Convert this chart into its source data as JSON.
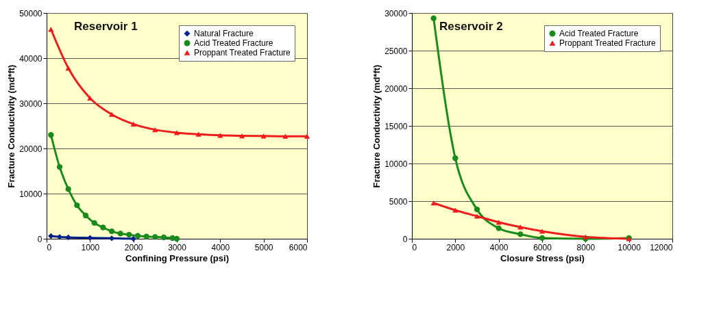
{
  "chart_data": [
    {
      "type": "line",
      "title": "Reservoir 1",
      "xlabel": "Confining Pressure (psi)",
      "ylabel": "Fracture Conductivity (md*ft)",
      "xlim": [
        0,
        6000
      ],
      "xticks": [
        0,
        1000,
        2000,
        3000,
        4000,
        5000,
        6000
      ],
      "ylim": [
        0,
        50000
      ],
      "yticks": [
        0,
        10000,
        20000,
        30000,
        40000,
        50000
      ],
      "grid": "y",
      "legend": "top right",
      "series": [
        {
          "name": "Natural Fracture",
          "color": "#00218c",
          "marker": "diamond",
          "x": [
            100,
            300,
            500,
            1000,
            1500,
            2000
          ],
          "values": [
            600,
            400,
            300,
            200,
            100,
            0
          ]
        },
        {
          "name": "Acid Treated Fracture",
          "color": "#1a8a1a",
          "marker": "circle",
          "x": [
            100,
            300,
            500,
            700,
            900,
            1100,
            1300,
            1500,
            1700,
            1900,
            2100,
            2300,
            2500,
            2700,
            2900,
            3000
          ],
          "values": [
            23000,
            15900,
            11000,
            7400,
            5150,
            3500,
            2500,
            1650,
            1150,
            900,
            650,
            500,
            400,
            300,
            150,
            0
          ]
        },
        {
          "name": "Proppant Treated Fracture",
          "color": "#ee1c1c",
          "marker": "triangle",
          "x": [
            100,
            500,
            1000,
            1500,
            2000,
            2500,
            3000,
            3500,
            4000,
            4500,
            5000,
            5500,
            6000
          ],
          "values": [
            46400,
            37800,
            31150,
            27550,
            25400,
            24150,
            23500,
            23150,
            22900,
            22800,
            22750,
            22700,
            22700
          ]
        }
      ]
    },
    {
      "type": "line",
      "title": "Reservoir 2",
      "xlabel": "Closure Stress (psi)",
      "ylabel": "Fracture Conductivity (md*ft)",
      "xlim": [
        0,
        12000
      ],
      "xticks": [
        0,
        2000,
        4000,
        6000,
        8000,
        10000,
        12000
      ],
      "ylim": [
        0,
        30000
      ],
      "yticks": [
        0,
        5000,
        10000,
        15000,
        20000,
        25000,
        30000
      ],
      "grid": "y",
      "legend": "top right",
      "series": [
        {
          "name": "Acid Treated Fracture",
          "color": "#1a8a1a",
          "marker": "circle",
          "x": [
            1000,
            2000,
            3000,
            4000,
            5000,
            6000,
            8000,
            10000
          ],
          "values": [
            29300,
            10700,
            3900,
            1400,
            600,
            100,
            0,
            100
          ]
        },
        {
          "name": "Proppant Treated Fracture",
          "color": "#ee1c1c",
          "marker": "triangle",
          "x": [
            1000,
            2000,
            3000,
            4000,
            5000,
            6000,
            8000,
            10000
          ],
          "values": [
            4750,
            3800,
            3000,
            2200,
            1550,
            1000,
            250,
            0
          ]
        }
      ]
    }
  ]
}
